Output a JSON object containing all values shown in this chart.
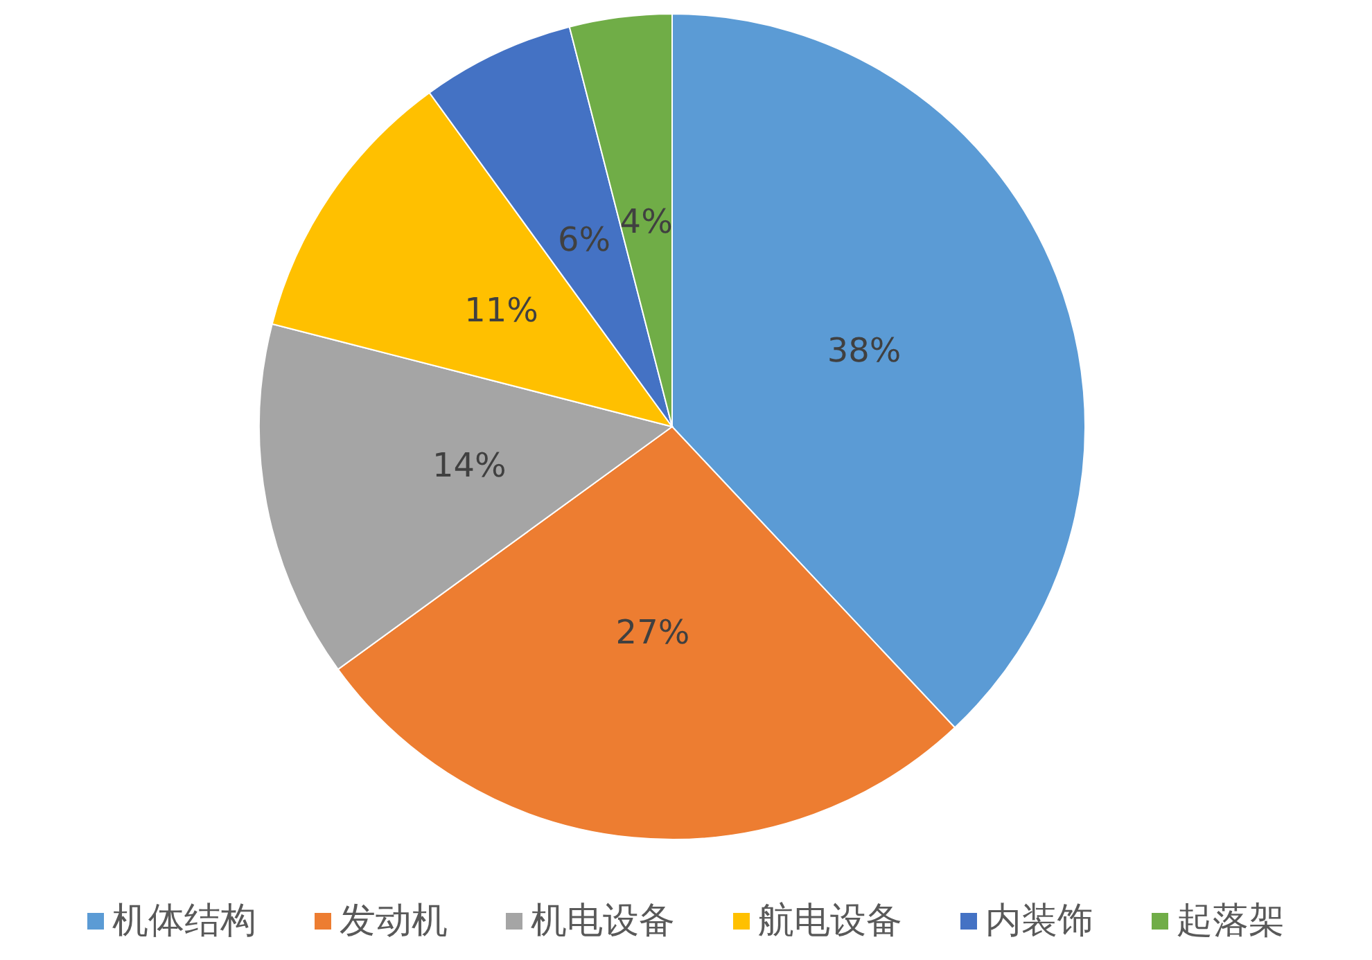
{
  "chart_data": {
    "type": "pie",
    "categories": [
      "机体结构",
      "发动机",
      "机电设备",
      "航电设备",
      "内装饰",
      "起落架"
    ],
    "values": [
      38,
      27,
      14,
      11,
      6,
      4
    ],
    "value_labels": [
      "38%",
      "27%",
      "14%",
      "11%",
      "6%",
      "4%"
    ],
    "colors": [
      "#5b9bd5",
      "#ed7d31",
      "#a5a5a5",
      "#ffc000",
      "#4472c4",
      "#70ad47"
    ],
    "legend": "bottom"
  }
}
